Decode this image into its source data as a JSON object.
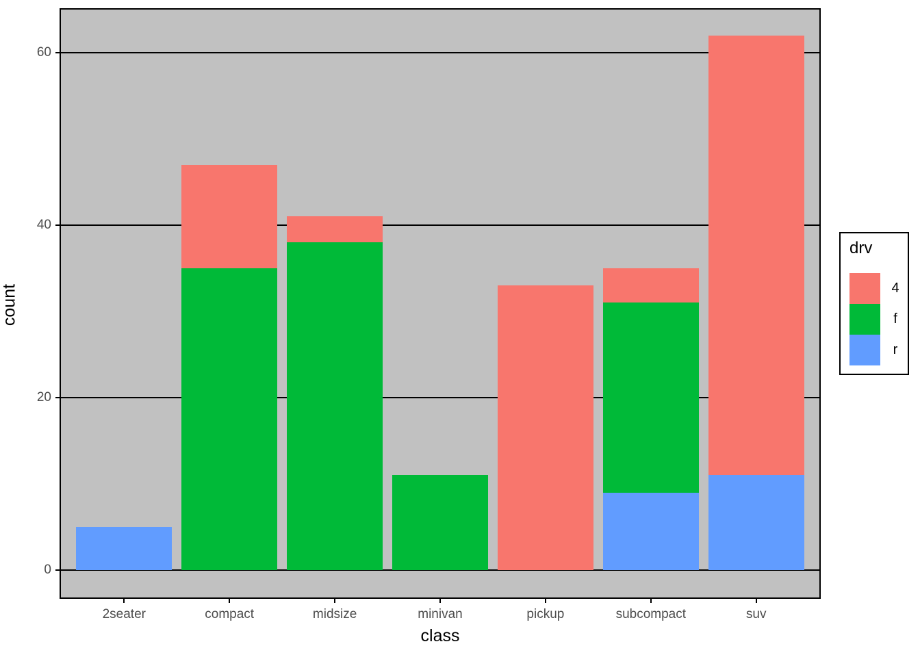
{
  "figure": {
    "background": "#FFFFFF",
    "panel_background": "#C1C1C1",
    "grid_color": "#000000",
    "tick_label_color": "#4D4D4D",
    "axis_title_color": "#000000"
  },
  "chart_data": {
    "type": "bar",
    "stacked": true,
    "title": "",
    "xlabel": "class",
    "ylabel": "count",
    "categories": [
      "2seater",
      "compact",
      "midsize",
      "minivan",
      "pickup",
      "subcompact",
      "suv"
    ],
    "stack_order_bottom_to_top": [
      "r",
      "f",
      "4"
    ],
    "series": [
      {
        "name": "4",
        "color": "#F8766D",
        "values": [
          0,
          12,
          3,
          0,
          33,
          4,
          51
        ]
      },
      {
        "name": "f",
        "color": "#00BA38",
        "values": [
          0,
          35,
          38,
          11,
          0,
          22,
          0
        ]
      },
      {
        "name": "r",
        "color": "#619CFF",
        "values": [
          5,
          0,
          0,
          0,
          0,
          9,
          11
        ]
      }
    ],
    "totals": [
      5,
      47,
      41,
      11,
      33,
      35,
      62
    ],
    "y_ticks": [
      0,
      20,
      40,
      60
    ],
    "ylim": [
      -3.1,
      65.1
    ],
    "grid": "horizontal-major-only",
    "legend": {
      "title": "drv",
      "position": "right",
      "entries": [
        {
          "label": "4",
          "color": "#F8766D"
        },
        {
          "label": "f",
          "color": "#00BA38"
        },
        {
          "label": "r",
          "color": "#619CFF"
        }
      ]
    }
  }
}
